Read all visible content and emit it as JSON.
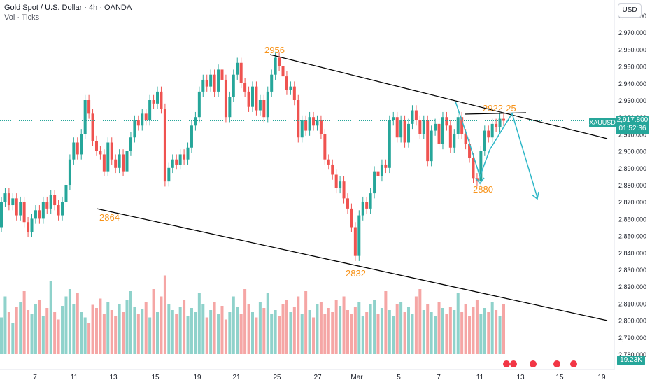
{
  "header": {
    "title": "Gold Spot / U.S. Dollar · 4h · OANDA",
    "indicator": "Vol · Ticks"
  },
  "currency_button": "USD",
  "symbol_badge": "XAUUSD",
  "price_badge": {
    "price": "2,917.800",
    "countdown": "01:52:36"
  },
  "volume_badge": "19.23K",
  "colors": {
    "up": "#26a69a",
    "down": "#ef5350",
    "up_vol": "#8fd2cb",
    "down_vol": "#f5a6a5",
    "annotation": "#f7931a",
    "arrow": "#30b8c8",
    "line": "#000000"
  },
  "chart_data": {
    "type": "candlestick",
    "xlabel": "",
    "ylabel": "",
    "ylim": [
      2780,
      2985
    ],
    "y_ticks": [
      "2,780.000",
      "2,790.000",
      "2,800.000",
      "2,810.000",
      "2,820.000",
      "2,830.000",
      "2,840.000",
      "2,850.000",
      "2,860.000",
      "2,870.000",
      "2,880.000",
      "2,890.000",
      "2,900.000",
      "2,910.000",
      "2,920.000",
      "2,930.000",
      "2,940.000",
      "2,950.000",
      "2,960.000",
      "2,970.000",
      "2,980.000"
    ],
    "x_ticks": [
      "7",
      "11",
      "13",
      "15",
      "19",
      "21",
      "25",
      "27",
      "Mar",
      "5",
      "7",
      "11",
      "13",
      "15",
      "19"
    ],
    "current_price": 2917.8,
    "annotations": [
      "2956",
      "2864",
      "2832",
      "2922-25",
      "2880"
    ],
    "series": [
      {
        "name": "candles",
        "values": [
          [
            2855,
            2870
          ],
          [
            2870,
            2875
          ],
          [
            2875,
            2868
          ],
          [
            2868,
            2872
          ],
          [
            2872,
            2862
          ],
          [
            2862,
            2870
          ],
          [
            2870,
            2858
          ],
          [
            2858,
            2852
          ],
          [
            2852,
            2860
          ],
          [
            2860,
            2865
          ],
          [
            2865,
            2860
          ],
          [
            2860,
            2870
          ],
          [
            2870,
            2866
          ],
          [
            2866,
            2874
          ],
          [
            2874,
            2868
          ],
          [
            2868,
            2862
          ],
          [
            2862,
            2870
          ],
          [
            2870,
            2880
          ],
          [
            2880,
            2895
          ],
          [
            2895,
            2905
          ],
          [
            2905,
            2898
          ],
          [
            2898,
            2910
          ],
          [
            2910,
            2930
          ],
          [
            2930,
            2922
          ],
          [
            2922,
            2906
          ],
          [
            2906,
            2900
          ],
          [
            2900,
            2898
          ],
          [
            2898,
            2888
          ],
          [
            2888,
            2905
          ],
          [
            2905,
            2895
          ],
          [
            2895,
            2890
          ],
          [
            2890,
            2898
          ],
          [
            2898,
            2888
          ],
          [
            2888,
            2900
          ],
          [
            2900,
            2908
          ],
          [
            2908,
            2918
          ],
          [
            2918,
            2915
          ],
          [
            2915,
            2922
          ],
          [
            2922,
            2918
          ],
          [
            2918,
            2930
          ],
          [
            2930,
            2928
          ],
          [
            2928,
            2935
          ],
          [
            2935,
            2925
          ],
          [
            2925,
            2882
          ],
          [
            2882,
            2890
          ],
          [
            2890,
            2895
          ],
          [
            2895,
            2892
          ],
          [
            2892,
            2898
          ],
          [
            2898,
            2895
          ],
          [
            2895,
            2902
          ],
          [
            2902,
            2915
          ],
          [
            2915,
            2920
          ],
          [
            2920,
            2935
          ],
          [
            2935,
            2942
          ],
          [
            2942,
            2938
          ],
          [
            2938,
            2945
          ],
          [
            2945,
            2935
          ],
          [
            2935,
            2948
          ],
          [
            2948,
            2942
          ],
          [
            2942,
            2920
          ],
          [
            2920,
            2932
          ],
          [
            2932,
            2945
          ],
          [
            2945,
            2952
          ],
          [
            2952,
            2940
          ],
          [
            2940,
            2935
          ],
          [
            2935,
            2926
          ],
          [
            2926,
            2938
          ],
          [
            2938,
            2924
          ],
          [
            2924,
            2930
          ],
          [
            2930,
            2920
          ],
          [
            2920,
            2935
          ],
          [
            2935,
            2945
          ],
          [
            2945,
            2955
          ],
          [
            2955,
            2950
          ],
          [
            2950,
            2944
          ],
          [
            2944,
            2936
          ],
          [
            2936,
            2938
          ],
          [
            2938,
            2930
          ],
          [
            2930,
            2908
          ],
          [
            2908,
            2918
          ],
          [
            2918,
            2912
          ],
          [
            2912,
            2920
          ],
          [
            2920,
            2915
          ],
          [
            2915,
            2918
          ],
          [
            2918,
            2910
          ],
          [
            2910,
            2895
          ],
          [
            2895,
            2892
          ],
          [
            2892,
            2886
          ],
          [
            2886,
            2878
          ],
          [
            2878,
            2882
          ],
          [
            2882,
            2872
          ],
          [
            2872,
            2866
          ],
          [
            2866,
            2855
          ],
          [
            2855,
            2838
          ],
          [
            2838,
            2862
          ],
          [
            2862,
            2870
          ],
          [
            2870,
            2866
          ],
          [
            2866,
            2875
          ],
          [
            2875,
            2888
          ],
          [
            2888,
            2885
          ],
          [
            2885,
            2892
          ],
          [
            2892,
            2890
          ],
          [
            2890,
            2918
          ],
          [
            2918,
            2920
          ],
          [
            2920,
            2908
          ],
          [
            2908,
            2918
          ],
          [
            2918,
            2905
          ],
          [
            2905,
            2916
          ],
          [
            2916,
            2924
          ],
          [
            2924,
            2918
          ],
          [
            2918,
            2910
          ],
          [
            2910,
            2918
          ],
          [
            2918,
            2894
          ],
          [
            2894,
            2912
          ],
          [
            2912,
            2916
          ],
          [
            2916,
            2904
          ],
          [
            2904,
            2920
          ],
          [
            2920,
            2915
          ],
          [
            2915,
            2902
          ],
          [
            2902,
            2910
          ],
          [
            2910,
            2920
          ],
          [
            2920,
            2910
          ],
          [
            2910,
            2904
          ],
          [
            2904,
            2896
          ],
          [
            2896,
            2884
          ],
          [
            2884,
            2882
          ],
          [
            2882,
            2900
          ],
          [
            2900,
            2912
          ],
          [
            2912,
            2908
          ],
          [
            2908,
            2916
          ],
          [
            2916,
            2914
          ],
          [
            2914,
            2919
          ],
          [
            2919,
            2917.8
          ]
        ]
      },
      {
        "name": "volume",
        "values": [
          35,
          55,
          40,
          30,
          45,
          50,
          60,
          42,
          38,
          48,
          52,
          36,
          44,
          70,
          40,
          33,
          46,
          55,
          62,
          48,
          58,
          40,
          35,
          30,
          47,
          44,
          53,
          38,
          50,
          42,
          36,
          48,
          40,
          52,
          60,
          45,
          38,
          43,
          50,
          35,
          62,
          40,
          55,
          75,
          48,
          42,
          38,
          45,
          52,
          36,
          44,
          40,
          58,
          48,
          35,
          42,
          50,
          38,
          46,
          33,
          40,
          55,
          45,
          38,
          62,
          48,
          40,
          35,
          50,
          44,
          58,
          38,
          42,
          36,
          48,
          52,
          40,
          45,
          55,
          38,
          60,
          42,
          35,
          48,
          50,
          38,
          44,
          40,
          52,
          46,
          55,
          42,
          38,
          45,
          50,
          36,
          40,
          48,
          52,
          38,
          44,
          60,
          42,
          36,
          48,
          50,
          40,
          45,
          38,
          55,
          62,
          42,
          48,
          40,
          36,
          50,
          44,
          38,
          45,
          42,
          58,
          40,
          48,
          36,
          45,
          52,
          38,
          44,
          40,
          50,
          42,
          36,
          48
        ]
      }
    ]
  }
}
